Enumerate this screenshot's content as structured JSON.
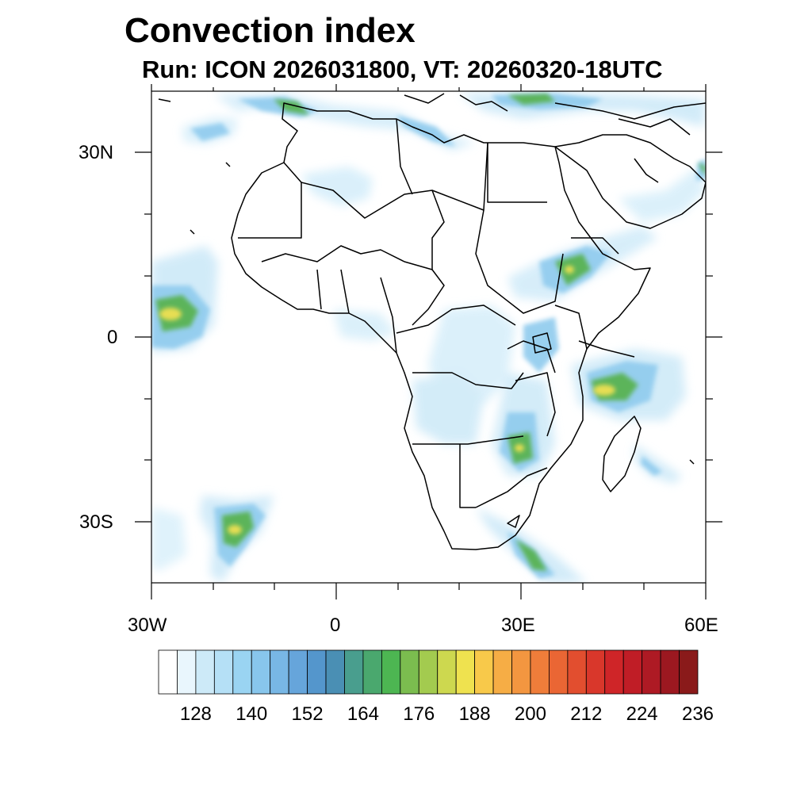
{
  "title": "Convection index",
  "subtitle": "Run: ICON 2026031800,  VT: 20260320-18UTC",
  "map": {
    "lon_range": [
      -30,
      60
    ],
    "lat_range": [
      -40,
      40
    ],
    "lat_labels": [
      "30N",
      "0",
      "30S"
    ],
    "lon_labels": [
      "30W",
      "0",
      "30E",
      "60E"
    ]
  },
  "colorbar": {
    "colors": [
      "#ffffff",
      "#e9f6fd",
      "#cdeaf8",
      "#b5e0f6",
      "#9ad4f2",
      "#88c6ec",
      "#78b7e5",
      "#66a5db",
      "#5496cc",
      "#4a8fb4",
      "#499e8e",
      "#4aa86e",
      "#4db652",
      "#7bbd4f",
      "#a3cb4f",
      "#cdd84f",
      "#efe24f",
      "#f8c94a",
      "#f6ad45",
      "#f39640",
      "#ef7d3a",
      "#ea6634",
      "#e24e2f",
      "#d9372b",
      "#cf2528",
      "#c01d26",
      "#ae1a24",
      "#9c1820",
      "#8a1a1a"
    ],
    "labels": [
      "128",
      "140",
      "152",
      "164",
      "176",
      "188",
      "200",
      "212",
      "224",
      "236"
    ]
  }
}
